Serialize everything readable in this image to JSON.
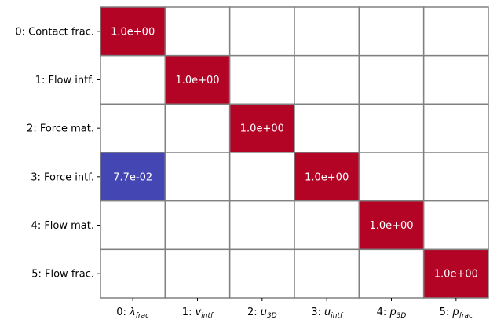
{
  "chart_data": {
    "type": "heatmap",
    "rows": [
      "0: Contact frac.",
      "1: Flow intf.",
      "2: Force mat.",
      "3: Force intf.",
      "4: Flow mat.",
      "5: Flow frac."
    ],
    "columns": [
      {
        "prefix": "0: ",
        "sym": "λ",
        "sub": "frac"
      },
      {
        "prefix": "1: ",
        "sym": "v",
        "sub": "intf"
      },
      {
        "prefix": "2: ",
        "sym": "u",
        "sub": "3D"
      },
      {
        "prefix": "3: ",
        "sym": "u",
        "sub": "intf"
      },
      {
        "prefix": "4: ",
        "sym": "p",
        "sub": "3D"
      },
      {
        "prefix": "5: ",
        "sym": "p",
        "sub": "frac"
      }
    ],
    "values": [
      [
        1.0,
        null,
        null,
        null,
        null,
        null
      ],
      [
        null,
        1.0,
        null,
        null,
        null,
        null
      ],
      [
        null,
        null,
        1.0,
        null,
        null,
        null
      ],
      [
        0.077,
        null,
        null,
        1.0,
        null,
        null
      ],
      [
        null,
        null,
        null,
        null,
        1.0,
        null
      ],
      [
        null,
        null,
        null,
        null,
        null,
        1.0
      ]
    ],
    "cell_labels": [
      [
        "1.0e+00",
        "",
        "",
        "",
        "",
        ""
      ],
      [
        "",
        "1.0e+00",
        "",
        "",
        "",
        ""
      ],
      [
        "",
        "",
        "1.0e+00",
        "",
        "",
        ""
      ],
      [
        "7.7e-02",
        "",
        "",
        "1.0e+00",
        "",
        ""
      ],
      [
        "",
        "",
        "",
        "",
        "1.0e+00",
        ""
      ],
      [
        "",
        "",
        "",
        "",
        "",
        "1.0e+00"
      ]
    ],
    "colormap": "coolwarm",
    "colors": {
      "high": "#b40426",
      "low": "#3b4cc0",
      "empty": "#ffffff",
      "grid": "#808080"
    },
    "grid": true,
    "legend": "none"
  }
}
